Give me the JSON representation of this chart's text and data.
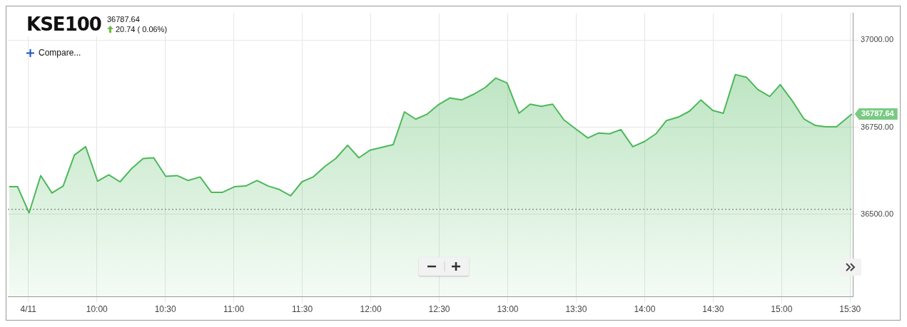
{
  "chart_data": {
    "type": "area",
    "title": "KSE100",
    "subtitle": "36787.64",
    "annotations": [
      "20.74 ( 0.06%)",
      "Compare...",
      {
        "text": "36787.64",
        "x": 15.513,
        "y": 36787.64
      }
    ],
    "series": [
      {
        "color": "#4cb85a",
        "x": [
          9.359,
          9.421,
          9.505,
          9.59,
          9.672,
          9.754,
          9.836,
          9.918,
          10.005,
          10.087,
          10.169,
          10.256,
          10.338,
          10.415,
          10.503,
          10.585,
          10.667,
          10.754,
          10.836,
          10.918,
          11.005,
          11.087,
          11.169,
          11.251,
          11.333,
          11.415,
          11.497,
          11.579,
          11.667,
          11.744,
          11.831,
          11.913,
          11.995,
          12.082,
          12.164,
          12.246,
          12.328,
          12.41,
          12.492,
          12.579,
          12.662,
          12.749,
          12.836,
          12.913,
          12.995,
          13.082,
          13.164,
          13.246,
          13.328,
          13.41,
          13.497,
          13.585,
          13.662,
          13.744,
          13.826,
          13.913,
          14.0,
          14.082,
          14.159,
          14.246,
          14.328,
          14.41,
          14.497,
          14.574,
          14.662,
          14.744,
          14.826,
          14.913,
          14.99,
          15.077,
          15.164,
          15.246,
          15.323,
          15.4,
          15.513
        ],
        "values": [
          36579,
          36579,
          36504,
          36611,
          36561,
          36581,
          36670,
          36694,
          36595,
          36613,
          36593,
          36632,
          36660,
          36662,
          36609,
          36611,
          36597,
          36607,
          36563,
          36563,
          36579,
          36581,
          36597,
          36581,
          36571,
          36553,
          36593,
          36607,
          36638,
          36660,
          36698,
          36662,
          36684,
          36692,
          36700,
          36794,
          36773,
          36787,
          36814,
          36834,
          36828,
          36844,
          36864,
          36891,
          36877,
          36790,
          36816,
          36810,
          36816,
          36771,
          36745,
          36719,
          36733,
          36731,
          36743,
          36694,
          36709,
          36731,
          36769,
          36779,
          36796,
          36828,
          36798,
          36790,
          36901,
          36893,
          36858,
          36838,
          36872,
          36826,
          36773,
          36755,
          36751,
          36751,
          36787.64
        ]
      }
    ],
    "xlim": [
      9.35,
      15.52
    ],
    "xticks": [
      {
        "value": 9.5,
        "label": "4/11"
      },
      {
        "value": 10,
        "label": "10:00"
      },
      {
        "value": 10.5,
        "label": "10:30"
      },
      {
        "value": 11,
        "label": "11:00"
      },
      {
        "value": 11.5,
        "label": "11:30"
      },
      {
        "value": 12,
        "label": "12:00"
      },
      {
        "value": 12.5,
        "label": "12:30"
      },
      {
        "value": 13,
        "label": "13:00"
      },
      {
        "value": 13.5,
        "label": "13:30"
      },
      {
        "value": 14,
        "label": "14:00"
      },
      {
        "value": 14.5,
        "label": "14:30"
      },
      {
        "value": 15,
        "label": "15:00"
      },
      {
        "value": 15.5,
        "label": "15:30"
      }
    ],
    "ylim": [
      36263,
      37077
    ],
    "yticks": [
      {
        "value": 36500,
        "label": "36500.00"
      },
      {
        "value": 36750,
        "label": "36750.00"
      },
      {
        "value": 37000,
        "label": "37000.00"
      }
    ],
    "ref_lines": [
      {
        "axis": "y",
        "value": 36514,
        "color": "#666666",
        "line_style": "dotted"
      }
    ],
    "grid": true,
    "legend": false,
    "marker": "none",
    "line_style": "solid"
  }
}
